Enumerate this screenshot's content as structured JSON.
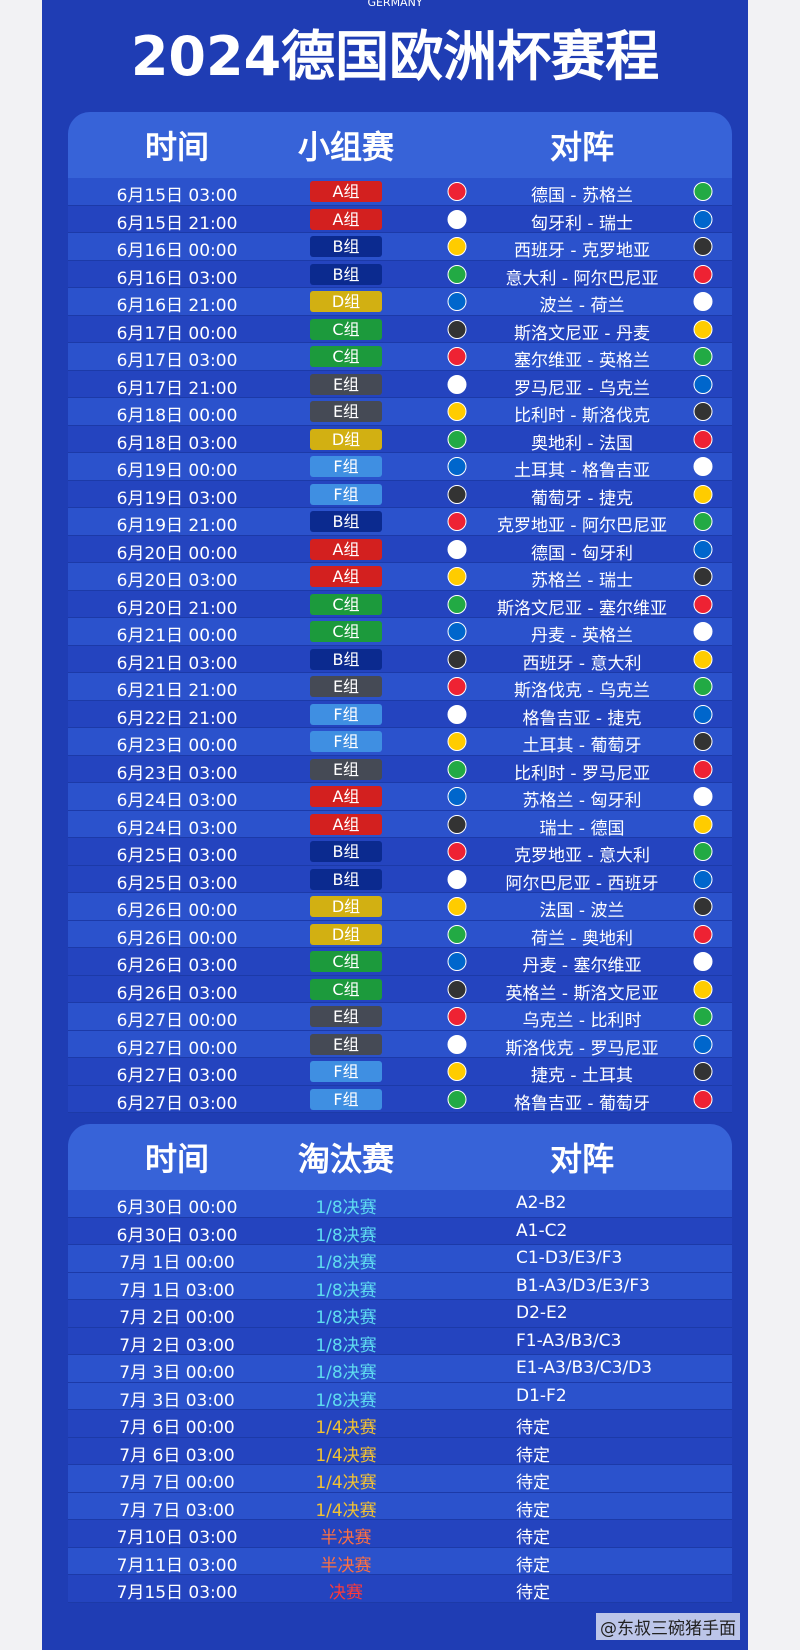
{
  "top_label": "GERMANY",
  "title": "2024德国欧洲杯赛程",
  "group_stage": {
    "headers": [
      "时间",
      "小组赛",
      "对阵"
    ],
    "rows": [
      [
        "6月15日 03:00",
        "A组",
        "德国 - 苏格兰"
      ],
      [
        "6月15日 21:00",
        "A组",
        "匈牙利 - 瑞士"
      ],
      [
        "6月16日 00:00",
        "B组",
        "西班牙 - 克罗地亚"
      ],
      [
        "6月16日 03:00",
        "B组",
        "意大利 - 阿尔巴尼亚"
      ],
      [
        "6月16日 21:00",
        "D组",
        "波兰 - 荷兰"
      ],
      [
        "6月17日 00:00",
        "C组",
        "斯洛文尼亚 - 丹麦"
      ],
      [
        "6月17日 03:00",
        "C组",
        "塞尔维亚 - 英格兰"
      ],
      [
        "6月17日 21:00",
        "E组",
        "罗马尼亚 - 乌克兰"
      ],
      [
        "6月18日 00:00",
        "E组",
        "比利时 - 斯洛伐克"
      ],
      [
        "6月18日 03:00",
        "D组",
        "奥地利 - 法国"
      ],
      [
        "6月19日 00:00",
        "F组",
        "土耳其 - 格鲁吉亚"
      ],
      [
        "6月19日 03:00",
        "F组",
        "葡萄牙 - 捷克"
      ],
      [
        "6月19日 21:00",
        "B组",
        "克罗地亚 - 阿尔巴尼亚"
      ],
      [
        "6月20日 00:00",
        "A组",
        "德国 - 匈牙利"
      ],
      [
        "6月20日 03:00",
        "A组",
        "苏格兰 - 瑞士"
      ],
      [
        "6月20日 21:00",
        "C组",
        "斯洛文尼亚 - 塞尔维亚"
      ],
      [
        "6月21日 00:00",
        "C组",
        "丹麦 - 英格兰"
      ],
      [
        "6月21日 03:00",
        "B组",
        "西班牙 - 意大利"
      ],
      [
        "6月21日 21:00",
        "E组",
        "斯洛伐克 - 乌克兰"
      ],
      [
        "6月22日 21:00",
        "F组",
        "格鲁吉亚 - 捷克"
      ],
      [
        "6月23日 00:00",
        "F组",
        "土耳其 - 葡萄牙"
      ],
      [
        "6月23日 03:00",
        "E组",
        "比利时 - 罗马尼亚"
      ],
      [
        "6月24日 03:00",
        "A组",
        "苏格兰 - 匈牙利"
      ],
      [
        "6月24日 03:00",
        "A组",
        "瑞士 - 德国"
      ],
      [
        "6月25日 03:00",
        "B组",
        "克罗地亚 - 意大利"
      ],
      [
        "6月25日 03:00",
        "B组",
        "阿尔巴尼亚 - 西班牙"
      ],
      [
        "6月26日 00:00",
        "D组",
        "法国 - 波兰"
      ],
      [
        "6月26日 00:00",
        "D组",
        "荷兰 - 奥地利"
      ],
      [
        "6月26日 03:00",
        "C组",
        "丹麦 - 塞尔维亚"
      ],
      [
        "6月26日 03:00",
        "C组",
        "英格兰 - 斯洛文尼亚"
      ],
      [
        "6月27日 00:00",
        "E组",
        "乌克兰 - 比利时"
      ],
      [
        "6月27日 00:00",
        "E组",
        "斯洛伐克 - 罗马尼亚"
      ],
      [
        "6月27日 03:00",
        "F组",
        "捷克 - 土耳其"
      ],
      [
        "6月27日 03:00",
        "F组",
        "格鲁吉亚 - 葡萄牙"
      ]
    ]
  },
  "knockout_stage": {
    "headers": [
      "时间",
      "淘汰赛",
      "对阵"
    ],
    "rows": [
      [
        "6月30日 00:00",
        "1/8决赛",
        "A2-B2"
      ],
      [
        "6月30日 03:00",
        "1/8决赛",
        "A1-C2"
      ],
      [
        "7月 1日 00:00",
        "1/8决赛",
        "C1-D3/E3/F3"
      ],
      [
        "7月 1日 03:00",
        "1/8决赛",
        "B1-A3/D3/E3/F3"
      ],
      [
        "7月 2日 00:00",
        "1/8决赛",
        "D2-E2"
      ],
      [
        "7月 2日 03:00",
        "1/8决赛",
        "F1-A3/B3/C3"
      ],
      [
        "7月 3日 00:00",
        "1/8决赛",
        "E1-A3/B3/C3/D3"
      ],
      [
        "7月 3日 03:00",
        "1/8决赛",
        "D1-F2"
      ],
      [
        "7月 6日 00:00",
        "1/4决赛",
        "待定"
      ],
      [
        "7月 6日 03:00",
        "1/4决赛",
        "待定"
      ],
      [
        "7月 7日 00:00",
        "1/4决赛",
        "待定"
      ],
      [
        "7月 7日 03:00",
        "1/4决赛",
        "待定"
      ],
      [
        "7月10日 03:00",
        "半决赛",
        "待定"
      ],
      [
        "7月11日 03:00",
        "半决赛",
        "待定"
      ],
      [
        "7月15日 03:00",
        "决赛",
        "待定"
      ]
    ]
  },
  "watermark": "@东叔三碗猪手面"
}
